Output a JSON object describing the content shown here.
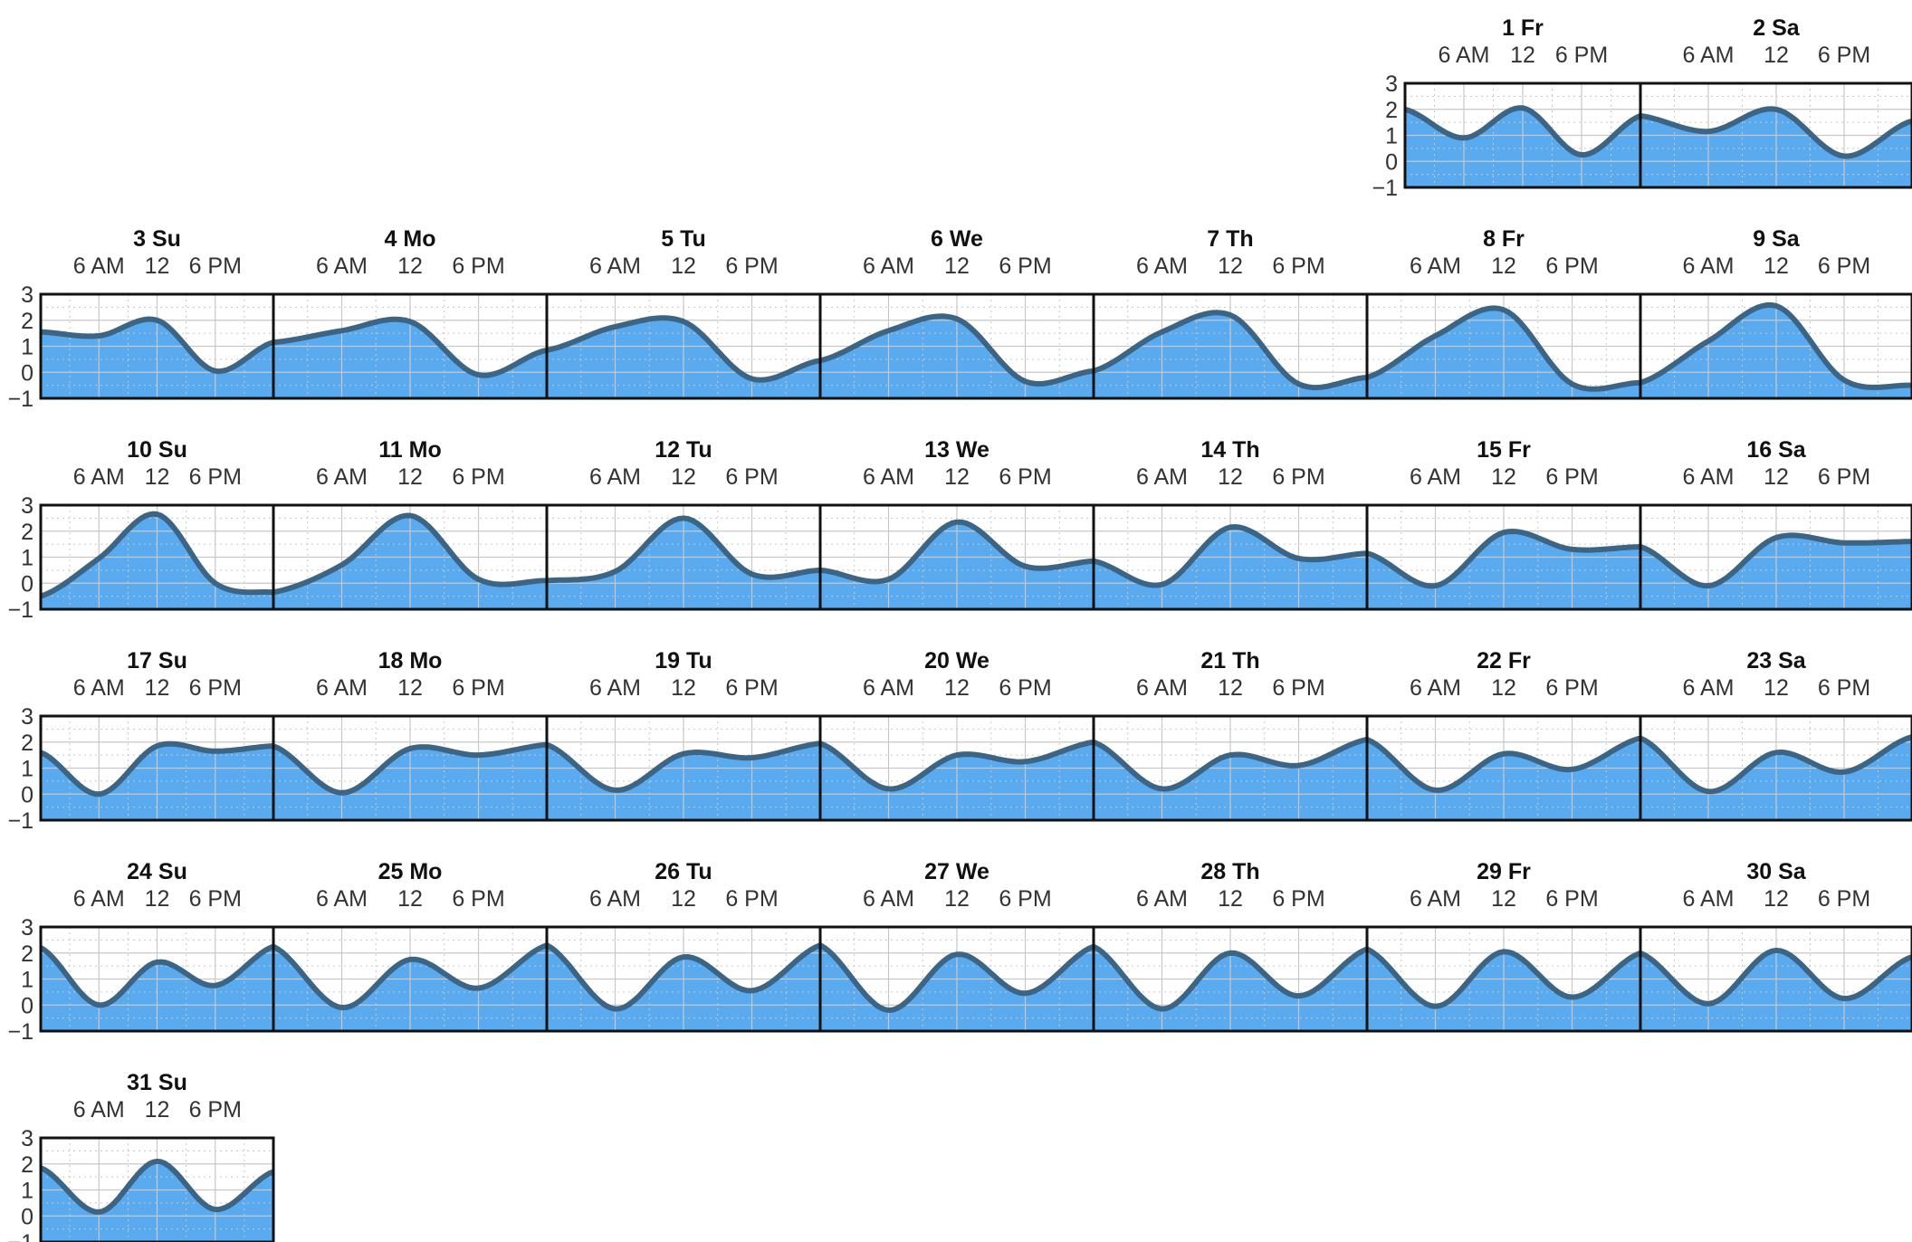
{
  "chart_data": {
    "type": "area",
    "y_ticks": [
      "3",
      "2",
      "1",
      "0",
      "−1"
    ],
    "ylim": [
      -1,
      3
    ],
    "time_labels": [
      "6 AM",
      "12",
      "6 PM"
    ],
    "grid": true,
    "colors": {
      "fill": "#5aaaf0",
      "line": "#3c6485",
      "frame": "#111111",
      "grid": "#c8c8c8"
    },
    "days": [
      {
        "label": "1 Fr",
        "a": 2.0,
        "b": 0.9,
        "c": 2.05,
        "d": 0.25,
        "e": 1.75
      },
      {
        "label": "2 Sa",
        "a": 1.75,
        "b": 1.15,
        "c": 2.0,
        "d": 0.2,
        "e": 1.55
      },
      {
        "label": "3 Su",
        "a": 1.55,
        "b": 1.4,
        "c": 2.0,
        "d": 0.05,
        "e": 1.15
      },
      {
        "label": "4 Mo",
        "a": 1.15,
        "b": 1.6,
        "c": 1.95,
        "d": -0.1,
        "e": 0.85
      },
      {
        "label": "5 Tu",
        "a": 0.85,
        "b": 1.75,
        "c": 1.95,
        "d": -0.25,
        "e": 0.45
      },
      {
        "label": "6 We",
        "a": 0.45,
        "b": 1.6,
        "c": 2.05,
        "d": -0.35,
        "e": 0.05
      },
      {
        "label": "7 Th",
        "a": 0.05,
        "b": 1.55,
        "c": 2.2,
        "d": -0.45,
        "e": -0.2
      },
      {
        "label": "8 Fr",
        "a": -0.2,
        "b": 1.4,
        "c": 2.4,
        "d": -0.45,
        "e": -0.4
      },
      {
        "label": "9 Sa",
        "a": -0.4,
        "b": 1.2,
        "c": 2.55,
        "d": -0.3,
        "e": -0.5
      },
      {
        "label": "10 Su",
        "a": -0.5,
        "b": 0.95,
        "c": 2.65,
        "d": 0.0,
        "e": -0.35
      },
      {
        "label": "11 Mo",
        "a": -0.35,
        "b": 0.7,
        "c": 2.6,
        "d": 0.15,
        "e": 0.1
      },
      {
        "label": "12 Tu",
        "a": 0.1,
        "b": 0.45,
        "c": 2.5,
        "d": 0.35,
        "e": 0.5
      },
      {
        "label": "13 We",
        "a": 0.5,
        "b": 0.15,
        "c": 2.35,
        "d": 0.65,
        "e": 0.85
      },
      {
        "label": "14 Th",
        "a": 0.85,
        "b": -0.05,
        "c": 2.15,
        "d": 0.95,
        "e": 1.15
      },
      {
        "label": "15 Fr",
        "a": 1.15,
        "b": -0.1,
        "c": 1.95,
        "d": 1.3,
        "e": 1.4
      },
      {
        "label": "16 Sa",
        "a": 1.4,
        "b": -0.1,
        "c": 1.75,
        "d": 1.55,
        "e": 1.6
      },
      {
        "label": "17 Su",
        "a": 1.6,
        "b": 0.0,
        "c": 1.85,
        "d": 1.65,
        "e": 1.85
      },
      {
        "label": "18 Mo",
        "a": 1.85,
        "b": 0.05,
        "c": 1.75,
        "d": 1.5,
        "e": 1.9
      },
      {
        "label": "19 Tu",
        "a": 1.9,
        "b": 0.15,
        "c": 1.55,
        "d": 1.4,
        "e": 1.95
      },
      {
        "label": "20 We",
        "a": 1.95,
        "b": 0.2,
        "c": 1.5,
        "d": 1.25,
        "e": 2.0
      },
      {
        "label": "21 Th",
        "a": 2.0,
        "b": 0.2,
        "c": 1.5,
        "d": 1.1,
        "e": 2.1
      },
      {
        "label": "22 Fr",
        "a": 2.1,
        "b": 0.15,
        "c": 1.55,
        "d": 0.95,
        "e": 2.15
      },
      {
        "label": "23 Sa",
        "a": 2.15,
        "b": 0.1,
        "c": 1.6,
        "d": 0.85,
        "e": 2.2
      },
      {
        "label": "24 Su",
        "a": 2.2,
        "b": 0.0,
        "c": 1.65,
        "d": 0.75,
        "e": 2.25
      },
      {
        "label": "25 Mo",
        "a": 2.25,
        "b": -0.1,
        "c": 1.75,
        "d": 0.65,
        "e": 2.3
      },
      {
        "label": "26 Tu",
        "a": 2.3,
        "b": -0.15,
        "c": 1.85,
        "d": 0.55,
        "e": 2.3
      },
      {
        "label": "27 We",
        "a": 2.3,
        "b": -0.2,
        "c": 1.95,
        "d": 0.45,
        "e": 2.25
      },
      {
        "label": "28 Th",
        "a": 2.25,
        "b": -0.15,
        "c": 2.0,
        "d": 0.35,
        "e": 2.15
      },
      {
        "label": "29 Fr",
        "a": 2.15,
        "b": -0.05,
        "c": 2.05,
        "d": 0.3,
        "e": 2.0
      },
      {
        "label": "30 Sa",
        "a": 2.0,
        "b": 0.05,
        "c": 2.1,
        "d": 0.25,
        "e": 1.85
      },
      {
        "label": "31 Su",
        "a": 1.85,
        "b": 0.15,
        "c": 2.1,
        "d": 0.25,
        "e": 1.7
      }
    ]
  }
}
